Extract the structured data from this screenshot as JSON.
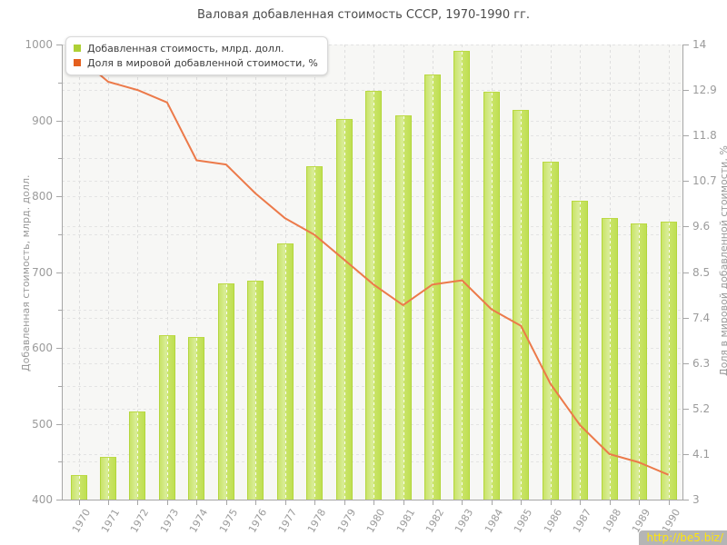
{
  "title": "Валовая добавленная стоимость СССР, 1970-1990 гг.",
  "watermark": "http://be5.biz/",
  "legend": {
    "items": [
      {
        "label": "Добавленная стоимость, млрд. долл.",
        "color": "#aed035"
      },
      {
        "label": "Доля в мировой добавленной стоимости, %",
        "color": "#e45f1e"
      }
    ]
  },
  "colors": {
    "bar": "#c6e15a",
    "bar_edge": "#b3d63c",
    "line": "#ec7a4a",
    "grid": "#e3e3e3",
    "axis": "#a6a6a6",
    "text": "#9b9b9b",
    "title": "#4c4c4c"
  },
  "chart_data": {
    "type": "bar",
    "title": "Валовая добавленная стоимость СССР, 1970-1990 гг.",
    "categories": [
      "1970",
      "1971",
      "1972",
      "1973",
      "1974",
      "1975",
      "1976",
      "1977",
      "1978",
      "1979",
      "1980",
      "1981",
      "1982",
      "1983",
      "1984",
      "1985",
      "1986",
      "1987",
      "1988",
      "1989",
      "1990"
    ],
    "series": [
      {
        "name": "Добавленная стоимость, млрд. долл.",
        "type": "bar",
        "axis": "left",
        "values": [
          432,
          456,
          516,
          617,
          615,
          685,
          689,
          738,
          840,
          902,
          939,
          907,
          960,
          992,
          938,
          914,
          846,
          794,
          771,
          764,
          767
        ]
      },
      {
        "name": "Доля в мировой добавленной стоимости, %",
        "type": "line",
        "axis": "right",
        "values": [
          13.7,
          13.1,
          12.9,
          12.6,
          11.2,
          11.1,
          10.4,
          9.8,
          9.4,
          8.8,
          8.2,
          7.7,
          8.2,
          8.3,
          7.6,
          7.2,
          5.8,
          4.8,
          4.1,
          3.9,
          3.6
        ]
      }
    ],
    "left_axis": {
      "label": "Добавленная стоимость, млрд. долл.",
      "min": 400,
      "max": 1000,
      "tick_step": 100,
      "minor_step": 50,
      "ticks": [
        "400",
        "500",
        "600",
        "700",
        "800",
        "900",
        "1000"
      ]
    },
    "right_axis": {
      "label": "Доля в мировой добавленной стоимости, %",
      "min": 3,
      "max": 14,
      "tick_step": 1.1,
      "ticks": [
        "3",
        "4.1",
        "5.2",
        "6.3",
        "7.4",
        "8.5",
        "9.6",
        "10.7",
        "11.8",
        "12.9",
        "14"
      ]
    },
    "grid": true,
    "legend_position": "top-left"
  }
}
